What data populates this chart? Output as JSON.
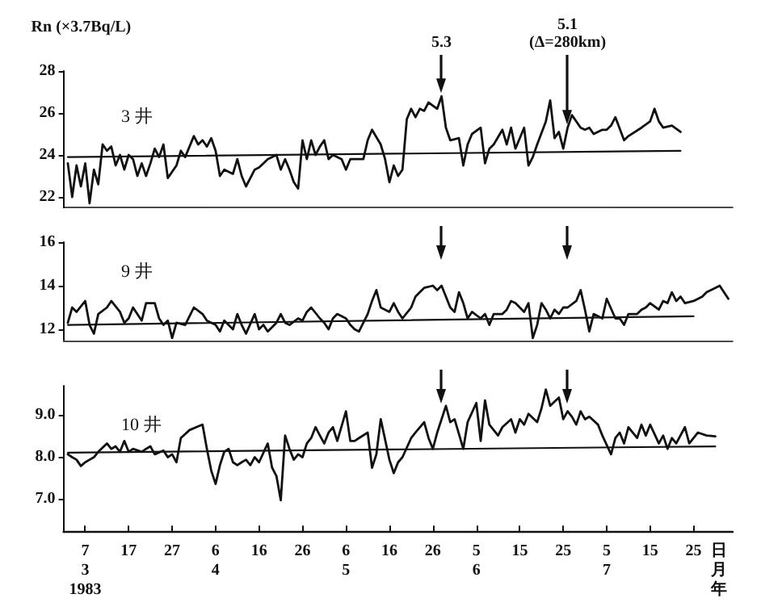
{
  "chart_data": [
    {
      "type": "line",
      "title": "3 井",
      "ylabel": "Rn (×3.7Bq/L)",
      "xlim": [
        "1983-03-02",
        "1983-08-03"
      ],
      "ylim": [
        21.5,
        28
      ],
      "yticks": [
        22,
        24,
        26,
        28
      ],
      "tick_labels": "y",
      "x": [
        "1983-03-03",
        "1983-03-04",
        "1983-03-05",
        "1983-03-06",
        "1983-03-07",
        "1983-03-08",
        "1983-03-09",
        "1983-03-10",
        "1983-03-11",
        "1983-03-12",
        "1983-03-13",
        "1983-03-14",
        "1983-03-15",
        "1983-03-16",
        "1983-03-17",
        "1983-03-18",
        "1983-03-19",
        "1983-03-20",
        "1983-03-21",
        "1983-03-22",
        "1983-03-23",
        "1983-03-24",
        "1983-03-25",
        "1983-03-26",
        "1983-03-28",
        "1983-03-29",
        "1983-03-30",
        "1983-04-01",
        "1983-04-02",
        "1983-04-03",
        "1983-04-04",
        "1983-04-05",
        "1983-04-06",
        "1983-04-07",
        "1983-04-08",
        "1983-04-10",
        "1983-04-11",
        "1983-04-12",
        "1983-04-13",
        "1983-04-15",
        "1983-04-16",
        "1983-04-17",
        "1983-04-18",
        "1983-04-20",
        "1983-04-21",
        "1983-04-22",
        "1983-04-23",
        "1983-04-24",
        "1983-04-25",
        "1983-04-26",
        "1983-04-27",
        "1983-04-28",
        "1983-04-29",
        "1983-04-30",
        "1983-05-01",
        "1983-05-02",
        "1983-05-03",
        "1983-05-05",
        "1983-05-06",
        "1983-05-07",
        "1983-05-09",
        "1983-05-10",
        "1983-05-11",
        "1983-05-12",
        "1983-05-14",
        "1983-05-15",
        "1983-05-16",
        "1983-05-17",
        "1983-05-18",
        "1983-05-19",
        "1983-05-20",
        "1983-05-21",
        "1983-05-22",
        "1983-05-23",
        "1983-05-24",
        "1983-05-25",
        "1983-05-27",
        "1983-05-28",
        "1983-05-29",
        "1983-05-30",
        "1983-06-01",
        "1983-06-02",
        "1983-06-03",
        "1983-06-04",
        "1983-06-06",
        "1983-06-07",
        "1983-06-08",
        "1983-06-09",
        "1983-06-11",
        "1983-06-12",
        "1983-06-13",
        "1983-06-14",
        "1983-06-16",
        "1983-06-17",
        "1983-06-18",
        "1983-06-19",
        "1983-06-21",
        "1983-06-22",
        "1983-06-23",
        "1983-06-24",
        "1983-06-25",
        "1983-06-26",
        "1983-06-27",
        "1983-06-29",
        "1983-06-30",
        "1983-07-01",
        "1983-07-02",
        "1983-07-04",
        "1983-07-05",
        "1983-07-06",
        "1983-07-07",
        "1983-07-09",
        "1983-07-10",
        "1983-07-13",
        "1983-07-15",
        "1983-07-16",
        "1983-07-17",
        "1983-07-18",
        "1983-07-20",
        "1983-07-22"
      ],
      "series": [
        {
          "color": "#111111",
          "values": [
            23.6,
            22.0,
            23.5,
            22.5,
            23.6,
            21.7,
            23.3,
            22.6,
            24.5,
            24.2,
            24.4,
            23.5,
            24.0,
            23.3,
            24.0,
            23.8,
            23.0,
            23.6,
            23.0,
            23.6,
            24.3,
            23.9,
            24.5,
            22.9,
            23.5,
            24.2,
            23.9,
            24.9,
            24.5,
            24.7,
            24.4,
            24.8,
            24.2,
            23.0,
            23.3,
            23.1,
            23.8,
            23.0,
            22.5,
            23.3,
            23.4,
            23.6,
            23.8,
            24.0,
            23.3,
            23.8,
            23.3,
            22.7,
            22.4,
            24.7,
            23.8,
            24.7,
            24.0,
            24.4,
            24.7,
            23.8,
            24.0,
            23.8,
            23.3,
            23.8,
            23.8,
            23.8,
            24.7,
            25.2,
            24.5,
            23.8,
            22.7,
            23.5,
            23.0,
            23.3,
            25.7,
            26.2,
            25.8,
            26.2,
            26.1,
            26.5,
            26.2,
            26.8,
            25.3,
            24.7,
            24.8,
            23.5,
            24.5,
            25.0,
            25.3,
            23.6,
            24.3,
            24.5,
            25.2,
            24.5,
            25.3,
            24.3,
            25.3,
            23.5,
            23.9,
            24.5,
            25.6,
            26.6,
            24.8,
            25.1,
            24.3,
            25.3,
            25.9,
            25.3,
            25.2,
            25.3,
            25.0,
            25.2,
            25.2,
            25.4,
            25.8,
            24.7,
            24.9,
            25.3,
            25.6,
            26.2,
            25.6,
            25.3,
            25.4,
            25.1
          ]
        },
        {
          "type": "line",
          "color": "#111111",
          "x": [
            "1983-03-03",
            "1983-07-22"
          ],
          "values": [
            23.9,
            24.2
          ]
        }
      ],
      "annotations": [
        {
          "text": "5.3",
          "x": "1983-05-28",
          "y": 26.8
        },
        {
          "text": "5.1\n(Δ=280km)",
          "x": "1983-06-26",
          "y": 25.3
        }
      ]
    },
    {
      "type": "line",
      "title": "9 井",
      "xlim": [
        "1983-03-02",
        "1983-08-03"
      ],
      "ylim": [
        11.5,
        16
      ],
      "yticks": [
        12,
        14,
        16
      ],
      "tick_labels": "y",
      "x": [
        "1983-03-03",
        "1983-03-04",
        "1983-03-05",
        "1983-03-07",
        "1983-03-08",
        "1983-03-09",
        "1983-03-10",
        "1983-03-12",
        "1983-03-13",
        "1983-03-15",
        "1983-03-16",
        "1983-03-17",
        "1983-03-18",
        "1983-03-20",
        "1983-03-21",
        "1983-03-23",
        "1983-03-24",
        "1983-03-25",
        "1983-03-26",
        "1983-03-27",
        "1983-03-28",
        "1983-03-30",
        "1983-04-01",
        "1983-04-03",
        "1983-04-04",
        "1983-04-06",
        "1983-04-07",
        "1983-04-08",
        "1983-04-10",
        "1983-04-11",
        "1983-04-12",
        "1983-04-13",
        "1983-04-15",
        "1983-04-16",
        "1983-04-17",
        "1983-04-18",
        "1983-04-20",
        "1983-04-21",
        "1983-04-22",
        "1983-04-23",
        "1983-04-25",
        "1983-04-26",
        "1983-04-27",
        "1983-04-28",
        "1983-04-30",
        "1983-05-01",
        "1983-05-02",
        "1983-05-03",
        "1983-05-04",
        "1983-05-06",
        "1983-05-07",
        "1983-05-08",
        "1983-05-09",
        "1983-05-11",
        "1983-05-12",
        "1983-05-13",
        "1983-05-14",
        "1983-05-16",
        "1983-05-17",
        "1983-05-18",
        "1983-05-19",
        "1983-05-21",
        "1983-05-22",
        "1983-05-23",
        "1983-05-24",
        "1983-05-26",
        "1983-05-27",
        "1983-05-28",
        "1983-05-29",
        "1983-05-30",
        "1983-05-31",
        "1983-06-01",
        "1983-06-02",
        "1983-06-03",
        "1983-06-04",
        "1983-06-06",
        "1983-06-07",
        "1983-06-08",
        "1983-06-09",
        "1983-06-11",
        "1983-06-12",
        "1983-06-13",
        "1983-06-14",
        "1983-06-16",
        "1983-06-17",
        "1983-06-18",
        "1983-06-19",
        "1983-06-20",
        "1983-06-21",
        "1983-06-22",
        "1983-06-23",
        "1983-06-24",
        "1983-06-25",
        "1983-06-26",
        "1983-06-28",
        "1983-06-29",
        "1983-06-30",
        "1983-07-01",
        "1983-07-02",
        "1983-07-04",
        "1983-07-05",
        "1983-07-07",
        "1983-07-08",
        "1983-07-09",
        "1983-07-10",
        "1983-07-12",
        "1983-07-13",
        "1983-07-14",
        "1983-07-15",
        "1983-07-17",
        "1983-07-18",
        "1983-07-19",
        "1983-07-20",
        "1983-07-21",
        "1983-07-22",
        "1983-07-23",
        "1983-07-25",
        "1983-07-27",
        "1983-07-28",
        "1983-07-30",
        "1983-07-31",
        "1983-08-02"
      ],
      "series": [
        {
          "color": "#111111",
          "values": [
            12.3,
            13.0,
            12.8,
            13.3,
            12.2,
            11.8,
            12.7,
            13.0,
            13.3,
            12.8,
            12.3,
            12.5,
            13.0,
            12.4,
            13.2,
            13.2,
            12.5,
            12.2,
            12.4,
            11.6,
            12.3,
            12.2,
            13.0,
            12.7,
            12.4,
            12.2,
            11.9,
            12.4,
            12.0,
            12.7,
            12.2,
            11.8,
            12.7,
            12.0,
            12.2,
            11.9,
            12.3,
            12.7,
            12.3,
            12.2,
            12.5,
            12.4,
            12.8,
            13.0,
            12.5,
            12.3,
            12.0,
            12.5,
            12.7,
            12.5,
            12.2,
            12.0,
            11.9,
            12.7,
            13.3,
            13.8,
            13.0,
            12.8,
            13.2,
            12.8,
            12.5,
            13.0,
            13.5,
            13.7,
            13.9,
            14.0,
            13.8,
            14.0,
            13.5,
            13.0,
            12.8,
            13.7,
            13.2,
            12.5,
            12.8,
            12.5,
            12.7,
            12.2,
            12.7,
            12.7,
            12.9,
            13.3,
            13.2,
            12.8,
            13.2,
            11.6,
            12.2,
            13.2,
            12.9,
            12.5,
            12.9,
            12.7,
            13.0,
            13.0,
            13.3,
            13.8,
            12.9,
            11.9,
            12.7,
            12.5,
            13.4,
            12.5,
            12.5,
            12.2,
            12.7,
            12.7,
            12.9,
            13.0,
            13.2,
            12.9,
            13.3,
            13.2,
            13.7,
            13.3,
            13.5,
            13.2,
            13.3,
            13.5,
            13.7,
            13.9,
            14.0,
            13.4
          ]
        },
        {
          "type": "line",
          "color": "#111111",
          "x": [
            "1983-03-03",
            "1983-07-25"
          ],
          "values": [
            12.2,
            12.6
          ]
        }
      ]
    },
    {
      "type": "line",
      "title": "10 井",
      "xlabel": "日月年",
      "xlim": [
        "1983-03-02",
        "1983-08-03"
      ],
      "ylim": [
        6.2,
        9.7
      ],
      "yticks": [
        {
          "value": 7,
          "label": "7.0"
        },
        {
          "value": 8,
          "label": "8.0"
        },
        {
          "value": 9,
          "label": "9.0"
        }
      ],
      "xticks": [
        {
          "value": "1983-03-07",
          "label": "7\n3\n1983"
        },
        {
          "value": "1983-03-17",
          "label": "17"
        },
        {
          "value": "1983-03-27",
          "label": "27"
        },
        {
          "value": "1983-04-06",
          "label": "6\n4"
        },
        {
          "value": "1983-04-16",
          "label": "16"
        },
        {
          "value": "1983-04-26",
          "label": "26"
        },
        {
          "value": "1983-05-06",
          "label": "6\n5"
        },
        {
          "value": "1983-05-16",
          "label": "16"
        },
        {
          "value": "1983-05-26",
          "label": "26"
        },
        {
          "value": "1983-06-05",
          "label": "5\n6"
        },
        {
          "value": "1983-06-15",
          "label": "15"
        },
        {
          "value": "1983-06-25",
          "label": "25"
        },
        {
          "value": "1983-07-05",
          "label": "5\n7"
        },
        {
          "value": "1983-07-15",
          "label": "15"
        },
        {
          "value": "1983-07-25",
          "label": "25"
        }
      ],
      "x": [
        "1983-03-03",
        "1983-03-04",
        "1983-03-05",
        "1983-03-06",
        "1983-03-07",
        "1983-03-08",
        "1983-03-09",
        "1983-03-10",
        "1983-03-12",
        "1983-03-13",
        "1983-03-14",
        "1983-03-15",
        "1983-03-16",
        "1983-03-17",
        "1983-03-18",
        "1983-03-20",
        "1983-03-21",
        "1983-03-22",
        "1983-03-23",
        "1983-03-25",
        "1983-03-26",
        "1983-03-27",
        "1983-03-28",
        "1983-03-29",
        "1983-03-31",
        "1983-04-02",
        "1983-04-03",
        "1983-04-04",
        "1983-04-05",
        "1983-04-06",
        "1983-04-07",
        "1983-04-08",
        "1983-04-09",
        "1983-04-10",
        "1983-04-11",
        "1983-04-12",
        "1983-04-13",
        "1983-04-14",
        "1983-04-15",
        "1983-04-16",
        "1983-04-18",
        "1983-04-19",
        "1983-04-20",
        "1983-04-21",
        "1983-04-22",
        "1983-04-23",
        "1983-04-24",
        "1983-04-25",
        "1983-04-26",
        "1983-04-27",
        "1983-04-28",
        "1983-04-29",
        "1983-04-30",
        "1983-05-01",
        "1983-05-02",
        "1983-05-03",
        "1983-05-04",
        "1983-05-06",
        "1983-05-07",
        "1983-05-08",
        "1983-05-09",
        "1983-05-11",
        "1983-05-12",
        "1983-05-13",
        "1983-05-14",
        "1983-05-16",
        "1983-05-17",
        "1983-05-18",
        "1983-05-19",
        "1983-05-21",
        "1983-05-22",
        "1983-05-24",
        "1983-05-25",
        "1983-05-26",
        "1983-05-27",
        "1983-05-29",
        "1983-05-30",
        "1983-05-31",
        "1983-06-02",
        "1983-06-03",
        "1983-06-05",
        "1983-06-06",
        "1983-06-07",
        "1983-06-08",
        "1983-06-10",
        "1983-06-11",
        "1983-06-13",
        "1983-06-14",
        "1983-06-15",
        "1983-06-16",
        "1983-06-17",
        "1983-06-19",
        "1983-06-20",
        "1983-06-21",
        "1983-06-22",
        "1983-06-24",
        "1983-06-25",
        "1983-06-26",
        "1983-06-27",
        "1983-06-28",
        "1983-06-29",
        "1983-06-30",
        "1983-07-01",
        "1983-07-03",
        "1983-07-04",
        "1983-07-06",
        "1983-07-07",
        "1983-07-08",
        "1983-07-09",
        "1983-07-10",
        "1983-07-12",
        "1983-07-13",
        "1983-07-14",
        "1983-07-15",
        "1983-07-17",
        "1983-07-18",
        "1983-07-19",
        "1983-07-20",
        "1983-07-21",
        "1983-07-23",
        "1983-07-24",
        "1983-07-25",
        "1983-07-26",
        "1983-07-28",
        "1983-07-30"
      ],
      "series": [
        {
          "color": "#111111",
          "values": [
            8.06,
            7.99,
            7.93,
            7.78,
            7.87,
            7.93,
            7.99,
            8.12,
            8.32,
            8.19,
            8.25,
            8.12,
            8.38,
            8.12,
            8.19,
            8.12,
            8.19,
            8.25,
            8.06,
            8.15,
            7.99,
            8.06,
            7.87,
            8.45,
            8.64,
            8.73,
            8.77,
            8.19,
            7.67,
            7.35,
            7.8,
            8.12,
            8.19,
            7.87,
            7.8,
            7.87,
            7.93,
            7.8,
            7.99,
            7.87,
            8.32,
            7.74,
            7.54,
            6.96,
            8.51,
            8.19,
            7.93,
            8.06,
            7.99,
            8.32,
            8.45,
            8.71,
            8.51,
            8.32,
            8.58,
            8.71,
            8.38,
            9.09,
            8.38,
            8.38,
            8.45,
            8.58,
            7.74,
            8.06,
            8.9,
            7.93,
            7.61,
            7.87,
            7.99,
            8.45,
            8.58,
            8.83,
            8.45,
            8.19,
            8.58,
            9.22,
            8.83,
            8.9,
            8.19,
            8.83,
            9.29,
            8.38,
            9.35,
            8.77,
            8.51,
            8.71,
            8.9,
            8.58,
            8.9,
            8.77,
            9.03,
            8.83,
            9.16,
            9.61,
            9.22,
            9.42,
            8.9,
            9.09,
            8.96,
            8.77,
            9.09,
            8.9,
            8.96,
            8.77,
            8.51,
            8.06,
            8.45,
            8.58,
            8.32,
            8.71,
            8.45,
            8.77,
            8.51,
            8.77,
            8.32,
            8.51,
            8.19,
            8.45,
            8.32,
            8.71,
            8.32,
            8.45,
            8.58,
            8.51,
            8.49
          ]
        },
        {
          "type": "line",
          "color": "#111111",
          "x": [
            "1983-03-03",
            "1983-07-30"
          ],
          "values": [
            8.1,
            8.25
          ]
        }
      ]
    }
  ]
}
